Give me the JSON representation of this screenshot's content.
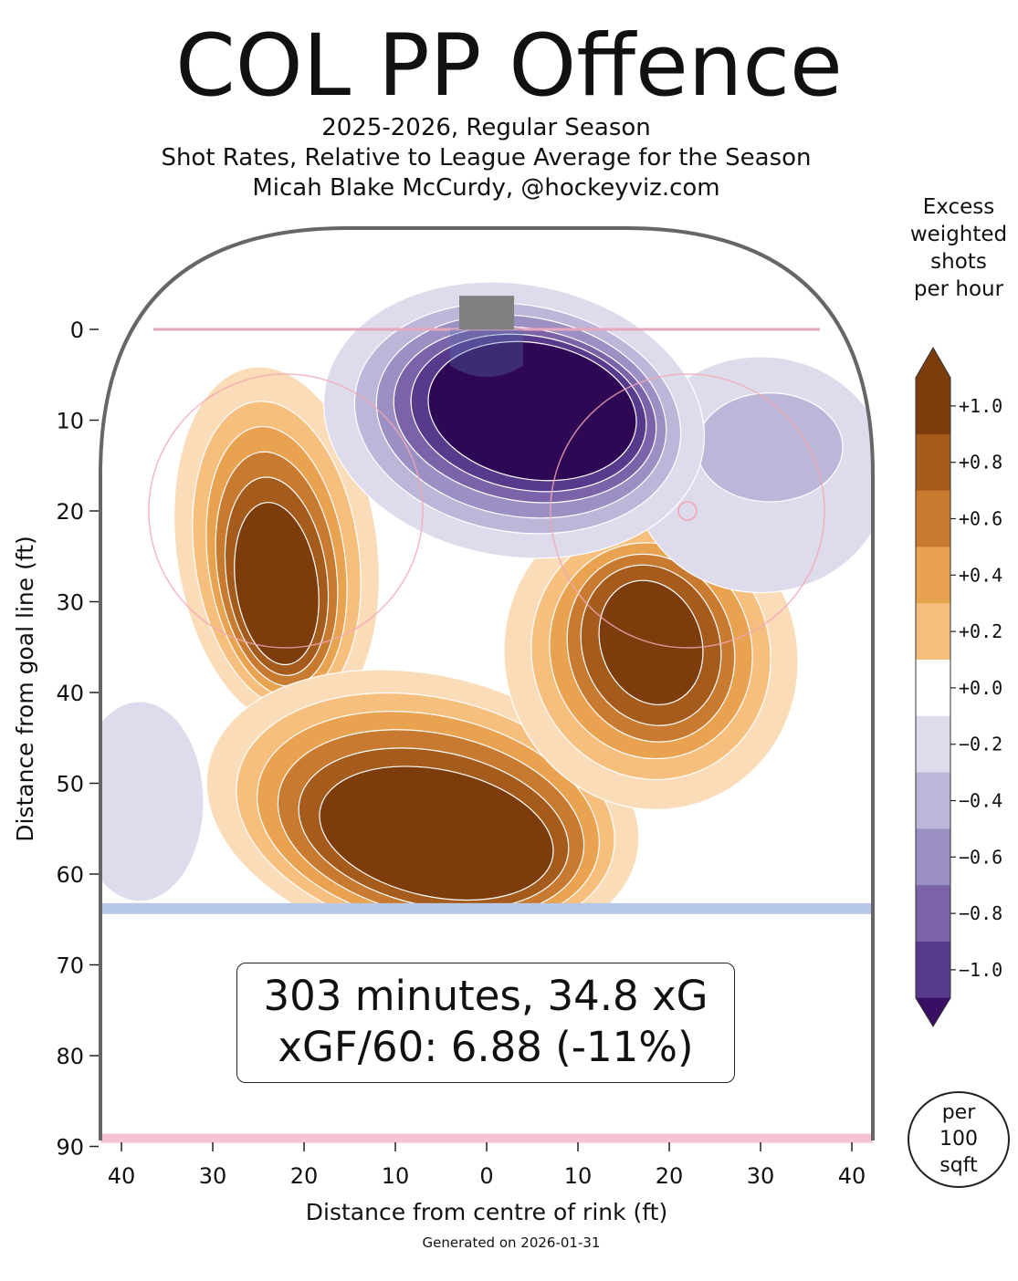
{
  "title": "COL PP Offence",
  "subtitle_lines": [
    "2025-2026, Regular Season",
    "Shot Rates, Relative to League Average for the Season",
    "Micah Blake McCurdy, @hockeyviz.com"
  ],
  "stats": {
    "line1": "303 minutes, 34.8 xG",
    "line2": "xGF/60: 6.88 (-11%)"
  },
  "generated": "Generated on 2026-01-31",
  "colorbar": {
    "title_lines": [
      "Excess",
      "weighted",
      "shots",
      "per hour"
    ],
    "per_lines": [
      "per",
      "100",
      "sqft"
    ]
  },
  "colors": {
    "orange_1": "#fbdcb8",
    "orange_2": "#f6bf7e",
    "orange_3": "#e8a250",
    "orange_4": "#c87a30",
    "orange_5": "#a55b1b",
    "orange_6": "#7d3c0c",
    "purple_1": "#dedcec",
    "purple_2": "#bcb6d8",
    "purple_3": "#9c8fc3",
    "purple_4": "#7a63a8",
    "purple_5": "#573a8b",
    "purple_6": "#2e0854",
    "rink_line": "#666666",
    "goal_line": "#e6a7bd",
    "blue_line": "#b7c7e8",
    "end_line": "#f4c2d0",
    "net": "#7f7f7f"
  },
  "chart_data": {
    "type": "heatmap",
    "title": "COL PP Offence",
    "xlabel": "Distance from centre of rink (ft)",
    "ylabel": "Distance from goal line (ft)",
    "x_ticks": [
      "40",
      "30",
      "20",
      "10",
      "0",
      "10",
      "20",
      "30",
      "40"
    ],
    "y_ticks": [
      "0",
      "10",
      "20",
      "30",
      "40",
      "50",
      "60",
      "70",
      "80",
      "90"
    ],
    "xlim": [
      -42.5,
      42.5
    ],
    "ylim": [
      90,
      -11
    ],
    "colorbar_ticks": [
      "+1.0",
      "+0.8",
      "+0.6",
      "+0.4",
      "+0.2",
      "+0.0",
      "−0.2",
      "−0.4",
      "−0.6",
      "−0.8",
      "−1.0"
    ],
    "colorbar_range": [
      -1.1,
      1.1
    ],
    "regions": [
      {
        "sign": "positive",
        "center_ft": [
          -22.5,
          25
        ],
        "peak": 1.0
      },
      {
        "sign": "positive",
        "center_ft": [
          -8,
          55
        ],
        "peak": 1.0
      },
      {
        "sign": "positive",
        "center_ft": [
          17,
          34
        ],
        "peak": 1.0
      },
      {
        "sign": "negative",
        "center_ft": [
          4,
          8
        ],
        "peak": -1.0
      },
      {
        "sign": "negative",
        "center_ft": [
          30,
          17
        ],
        "peak": -0.2
      },
      {
        "sign": "negative",
        "center_ft": [
          -37,
          52
        ],
        "peak": -0.2
      }
    ]
  }
}
